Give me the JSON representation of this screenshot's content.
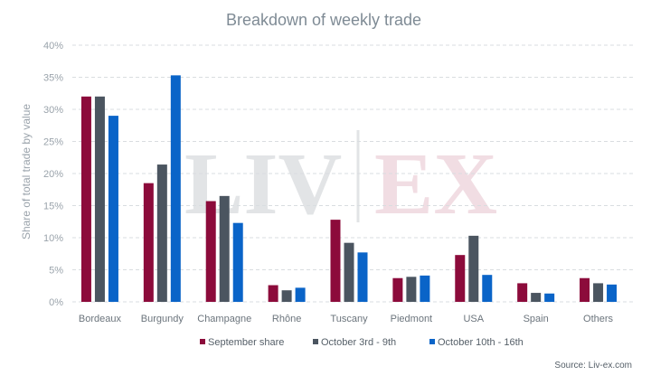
{
  "chart_data": {
    "type": "bar",
    "title": "Breakdown of weekly trade",
    "ylabel": "Share of total trade by value",
    "xlabel": "",
    "ylim": [
      0,
      40
    ],
    "yticks": [
      "0%",
      "5%",
      "10%",
      "15%",
      "20%",
      "25%",
      "30%",
      "35%",
      "40%"
    ],
    "ytick_values": [
      0,
      5,
      10,
      15,
      20,
      25,
      30,
      35,
      40
    ],
    "grid": true,
    "legend_position": "bottom",
    "categories": [
      "Bordeaux",
      "Burgundy",
      "Champagne",
      "Rhône",
      "Tuscany",
      "Piedmont",
      "USA",
      "Spain",
      "Others"
    ],
    "series": [
      {
        "name": "September share",
        "color": "#8c0b3b",
        "values": [
          32.0,
          18.5,
          15.7,
          2.6,
          12.8,
          3.7,
          7.3,
          2.9,
          3.7
        ]
      },
      {
        "name": "October 3rd - 9th",
        "color": "#4b5560",
        "values": [
          32.0,
          21.4,
          16.5,
          1.8,
          9.2,
          3.9,
          10.3,
          1.4,
          2.9
        ]
      },
      {
        "name": "October 10th - 16th",
        "color": "#0a64c8",
        "values": [
          29.0,
          35.3,
          12.3,
          2.2,
          7.7,
          4.1,
          4.2,
          1.3,
          2.7
        ]
      }
    ]
  },
  "source": "Source: Liv-ex.com",
  "watermark": {
    "left": "LIV",
    "right": "EX"
  }
}
